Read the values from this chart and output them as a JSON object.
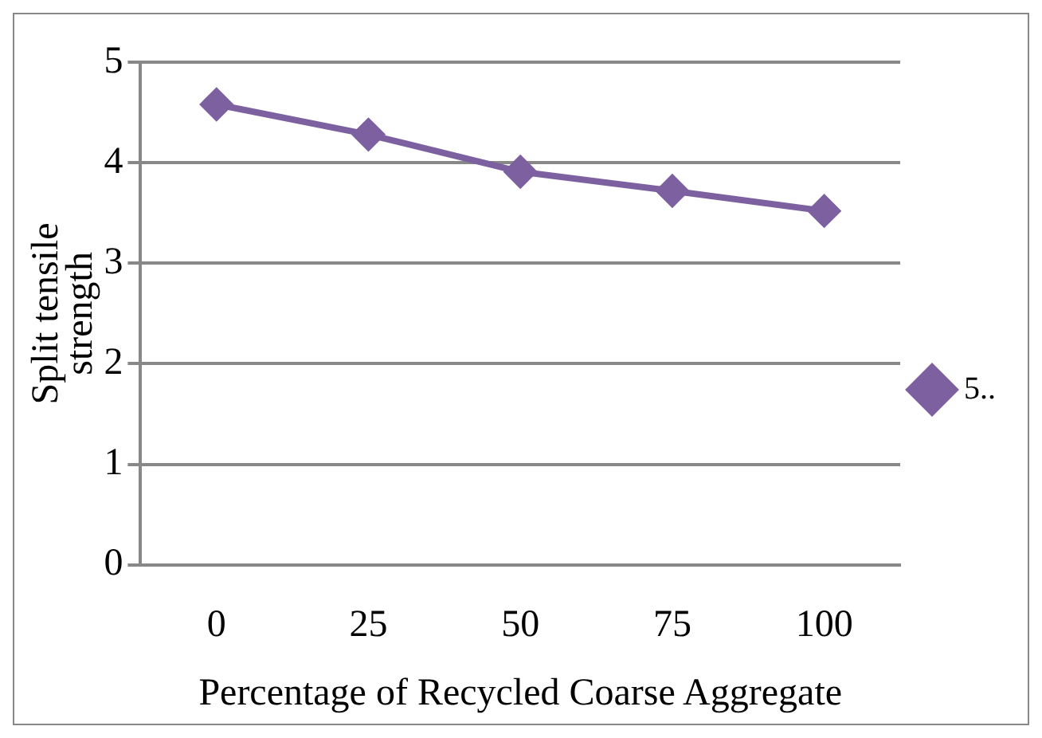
{
  "chart_data": {
    "type": "line",
    "xlabel": "Percentage of Recycled Coarse Aggregate",
    "ylabel": "Split tensile\nstrength",
    "categories": [
      "0",
      "25",
      "50",
      "75",
      "100"
    ],
    "series": [
      {
        "name": "5..",
        "color": "#7d60a0",
        "values": [
          4.58,
          4.28,
          3.91,
          3.72,
          3.52
        ]
      }
    ],
    "ylim": [
      0,
      5
    ],
    "yticks": [
      0,
      1,
      2,
      3,
      4,
      5
    ],
    "grid": "y",
    "legend": "right",
    "marker": "diamond",
    "line_style": "solid"
  }
}
